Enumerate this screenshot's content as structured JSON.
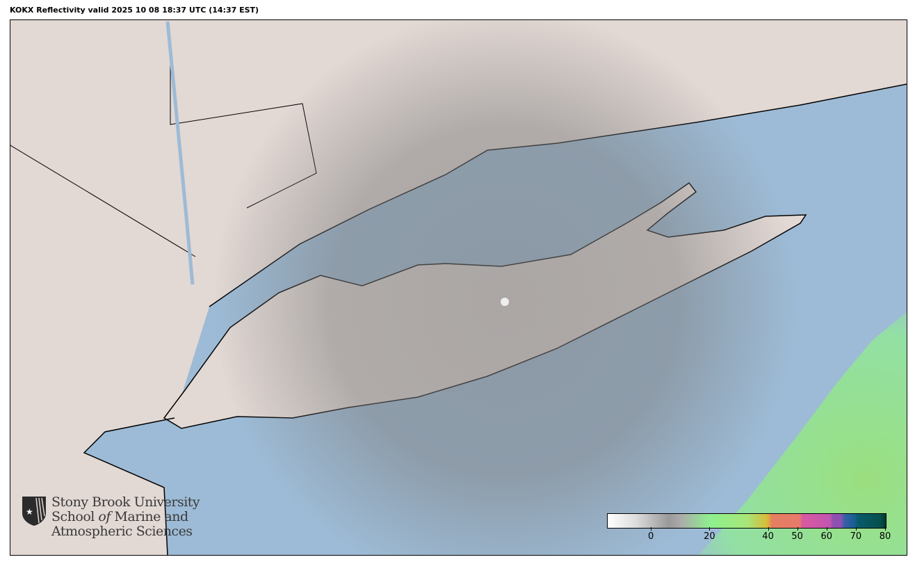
{
  "title": "KOKX Reflectivity valid 2025 10 08 18:37 UTC (14:37 EST)",
  "colors": {
    "ocean": "#9dbbd6",
    "land": "#e2d8d4",
    "radar_gray": "#8c8c8c",
    "radar_green": "#8ef08e"
  },
  "colorbar": {
    "min": -15,
    "max": 80,
    "ticks": [
      "0",
      "20",
      "40",
      "50",
      "60",
      "70",
      "80"
    ],
    "tick_values": [
      0,
      20,
      40,
      50,
      60,
      70,
      80
    ]
  },
  "logo": {
    "line1": "Stony Brook University",
    "line2a": "School ",
    "line2b": "of",
    "line2c": " Marine and",
    "line3": "Atmospheric Sciences",
    "icon": "shield-star-icon"
  }
}
